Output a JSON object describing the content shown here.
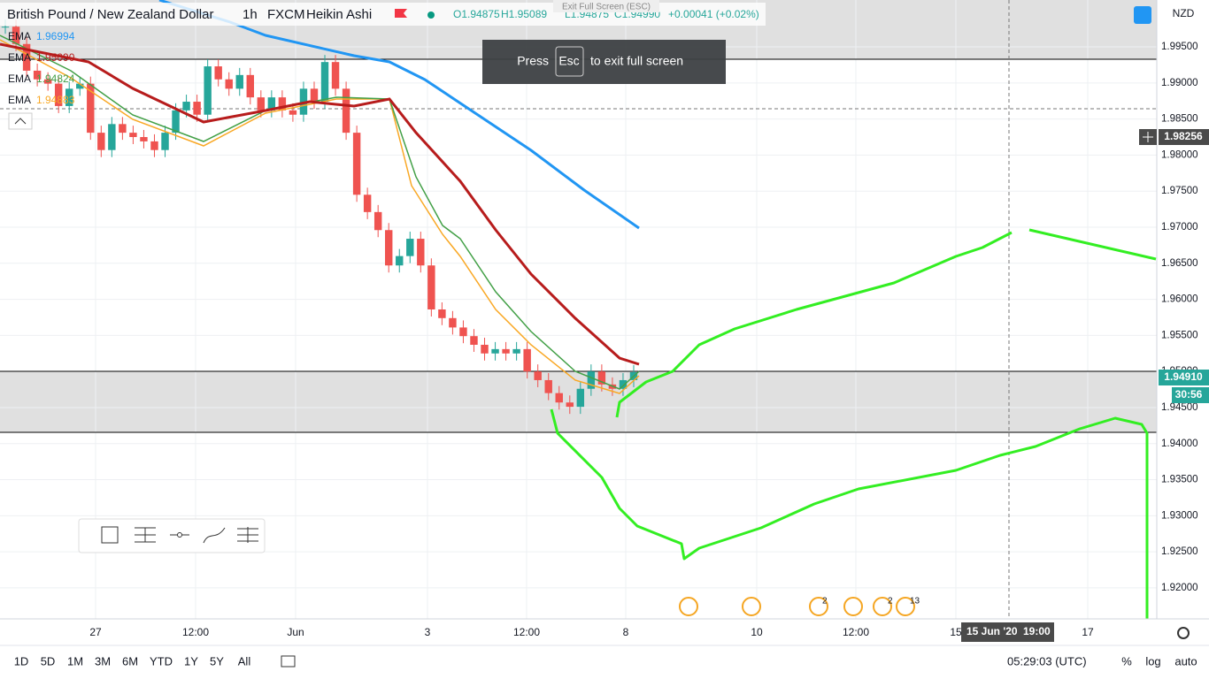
{
  "header": {
    "symbol": "British Pound / New Zealand Dollar",
    "interval": "1h",
    "source": "FXCM",
    "style": "Heikin Ashi",
    "open": "O1.94875",
    "high": "H1.95089",
    "low": "L1.94875",
    "close": "C1.94990",
    "change": "+0.00041 (+0.02%)"
  },
  "tooltip": "Exit Full Screen (ESC)",
  "toast": {
    "before": "Press",
    "key": "Esc",
    "after": "to exit full screen"
  },
  "indicators": [
    {
      "name": "EMA",
      "value": "1.96994",
      "color": "#2196f3"
    },
    {
      "name": "EMA",
      "value": "1.95090",
      "color": "#b71c1c"
    },
    {
      "name": "EMA",
      "value": "1.94824",
      "color": "#43a047"
    },
    {
      "name": "EMA",
      "value": "1.94883",
      "color": "#f9a825"
    }
  ],
  "chart": {
    "ylim": [
      1.9157,
      2.0015
    ],
    "closes": [
      1.9978,
      1.9954,
      1.9917,
      1.9905,
      1.9899,
      1.9868,
      1.9892,
      1.9899,
      1.9831,
      1.9807,
      1.9843,
      1.9831,
      1.9825,
      1.9819,
      1.9807,
      1.9831,
      1.9862,
      1.9874,
      1.9856,
      1.9923,
      1.9905,
      1.9892,
      1.9911,
      1.988,
      1.9862,
      1.988,
      1.9862,
      1.9856,
      1.9892,
      1.9874,
      1.9929,
      1.9892,
      1.9831,
      1.9745,
      1.9721,
      1.9696,
      1.9647,
      1.966,
      1.9684,
      1.9647,
      1.9586,
      1.9574,
      1.9561,
      1.9549,
      1.9537,
      1.9525,
      1.9531,
      1.9525,
      1.9531,
      1.95,
      1.9488,
      1.947,
      1.9457,
      1.9451,
      1.9476,
      1.95,
      1.9482,
      1.9476,
      1.9488,
      1.9499
    ]
  },
  "price_axis": {
    "currency": "NZD",
    "ticks": [
      {
        "value": 1.995,
        "label": "1.99500"
      },
      {
        "value": 1.99,
        "label": "1.99000"
      },
      {
        "value": 1.985,
        "label": "1.98500"
      },
      {
        "value": 1.98,
        "label": "1.98000"
      },
      {
        "value": 1.975,
        "label": "1.97500"
      },
      {
        "value": 1.97,
        "label": "1.97000"
      },
      {
        "value": 1.965,
        "label": "1.96500"
      },
      {
        "value": 1.96,
        "label": "1.96000"
      },
      {
        "value": 1.955,
        "label": "1.95500"
      },
      {
        "value": 1.95,
        "label": "1.95000"
      },
      {
        "value": 1.945,
        "label": "1.94500"
      },
      {
        "value": 1.94,
        "label": "1.94000"
      },
      {
        "value": 1.935,
        "label": "1.93500"
      },
      {
        "value": 1.93,
        "label": "1.93000"
      },
      {
        "value": 1.925,
        "label": "1.92500"
      },
      {
        "value": 1.92,
        "label": "1.92000"
      }
    ],
    "crosshair": "1.98256",
    "last": "1.94910",
    "countdown": "30:56"
  },
  "time_axis": {
    "labels": [
      "27",
      "12:00",
      "Jun",
      "3",
      "12:00",
      "8",
      "10",
      "12:00",
      "15",
      "17"
    ],
    "crosshair_date": "15 Jun '20",
    "crosshair_time": "19:00"
  },
  "events": [
    "2",
    "2",
    "13"
  ],
  "footer": {
    "ranges": [
      "1D",
      "5D",
      "1M",
      "3M",
      "6M",
      "YTD",
      "1Y",
      "5Y",
      "All"
    ],
    "clock": "05:29:03 (UTC)",
    "options": [
      "%",
      "log",
      "auto"
    ]
  }
}
